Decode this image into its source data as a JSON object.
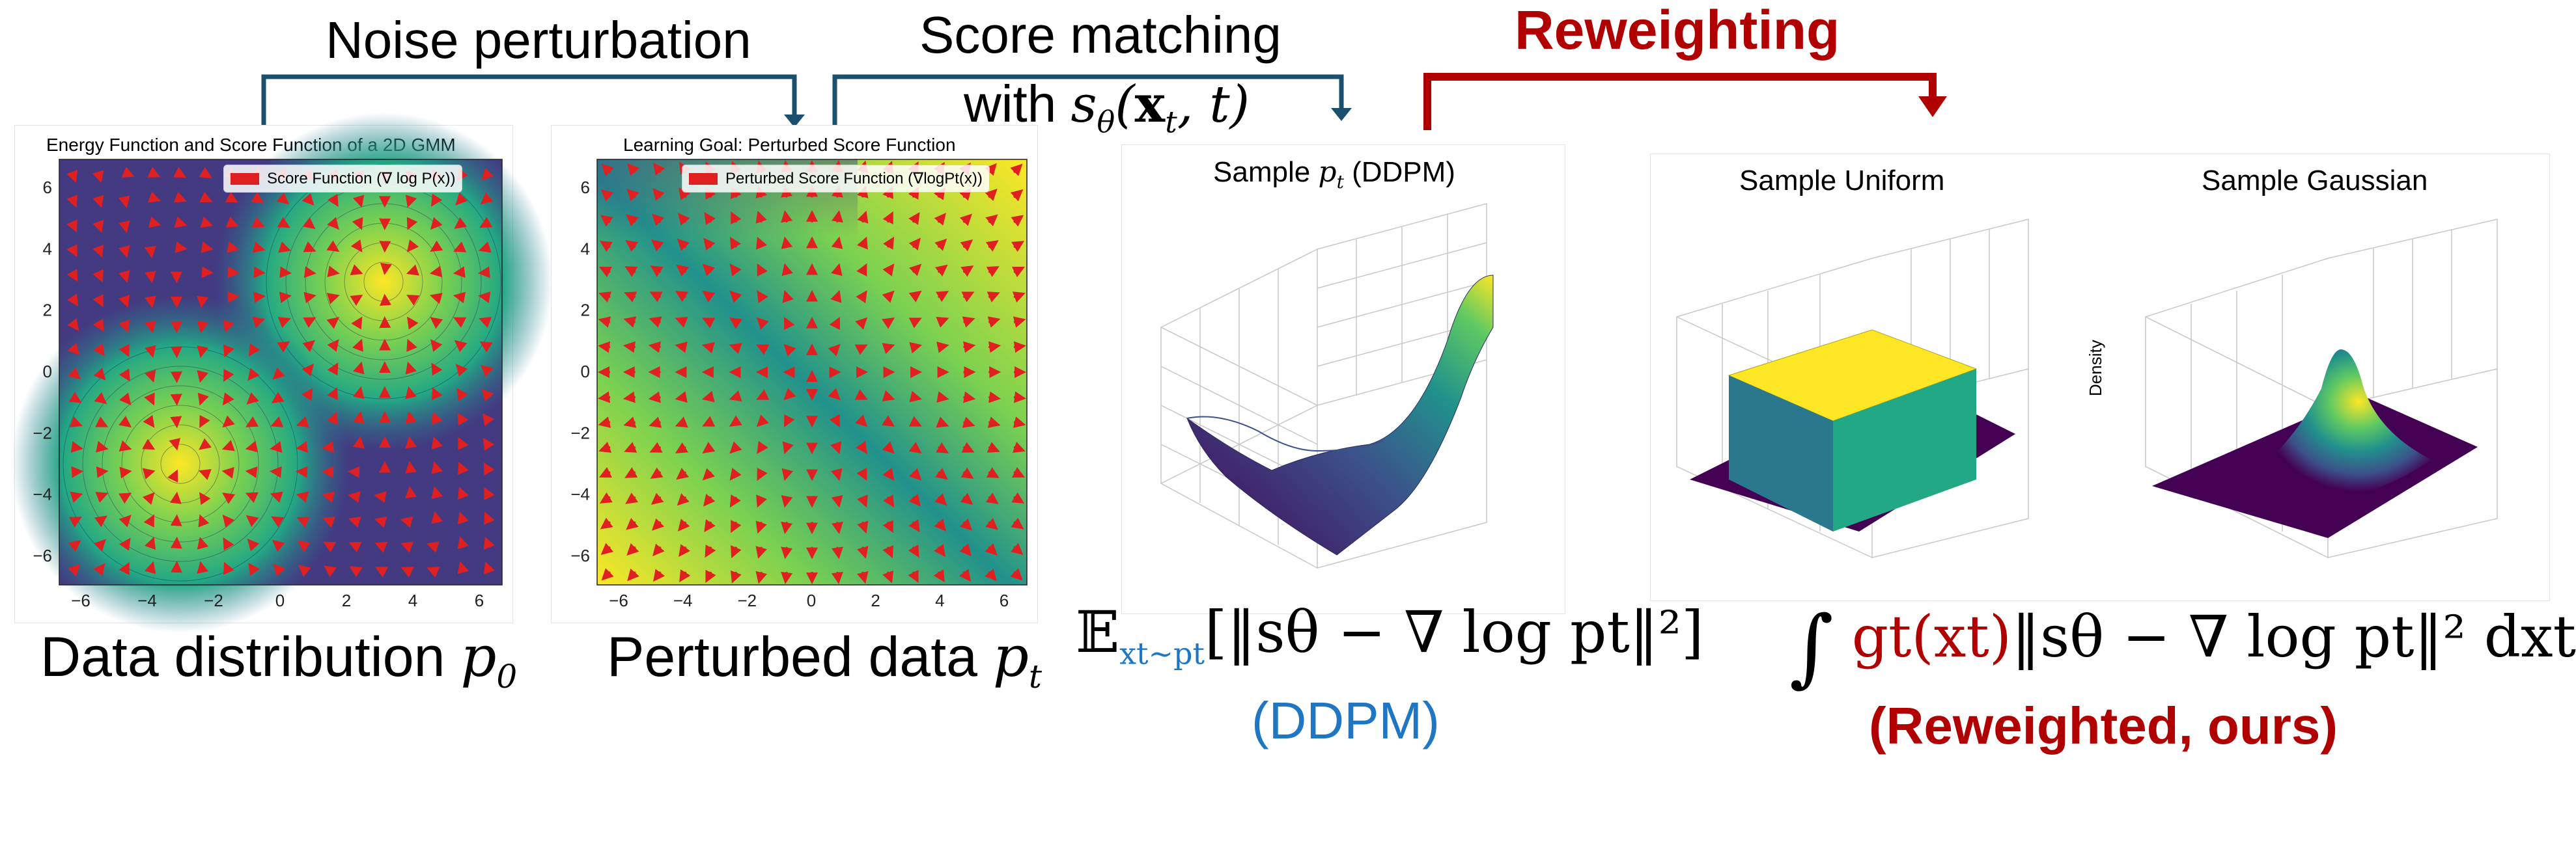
{
  "headers": {
    "noise": "Noise perturbation",
    "score_line1": "Score matching",
    "score_line2_prefix": "with",
    "score_line2_math": "sθ(xt, t)",
    "reweighting": "Reweighting"
  },
  "panels": {
    "gmm": {
      "title": "Energy Function and Score Function of a 2D GMM",
      "legend": "Score Function (∇ log P(x))",
      "caption_text": "Data distribution",
      "caption_math": "p0"
    },
    "perturbed": {
      "title": "Learning Goal: Perturbed Score Function",
      "legend": "Perturbed Score Function (∇logPt(x))",
      "caption_text": "Perturbed data",
      "caption_math": "pt"
    },
    "ddpm3d": {
      "title": "Sample pt (DDPM)"
    },
    "uniform3d": {
      "title": "Sample Uniform"
    },
    "gauss3d": {
      "title": "Sample Gaussian",
      "zlabel": "Density"
    }
  },
  "ticks": [
    "−6",
    "−4",
    "−2",
    "0",
    "2",
    "4",
    "6"
  ],
  "yticks": [
    "6",
    "4",
    "2",
    "0",
    "−2",
    "−4",
    "−6"
  ],
  "equations": {
    "ddpm_E": "𝔼",
    "ddpm_sub": "xt∼pt",
    "ddpm_body": "[‖sθ − ∇ log pt‖²]",
    "ddpm_label": "(DDPM)",
    "ours_int": "∫",
    "ours_g": "gt(xt)",
    "ours_body": "‖sθ − ∇ log pt‖² dxt",
    "ours_label": "(Reweighted, ours)"
  },
  "colors": {
    "arrow_dark": "#1a4f6e",
    "accent_red": "#b00000",
    "accent_blue": "#1f77c4",
    "viridis_dark": "#440154",
    "viridis_mid": "#21918c",
    "viridis_light": "#fde725"
  }
}
